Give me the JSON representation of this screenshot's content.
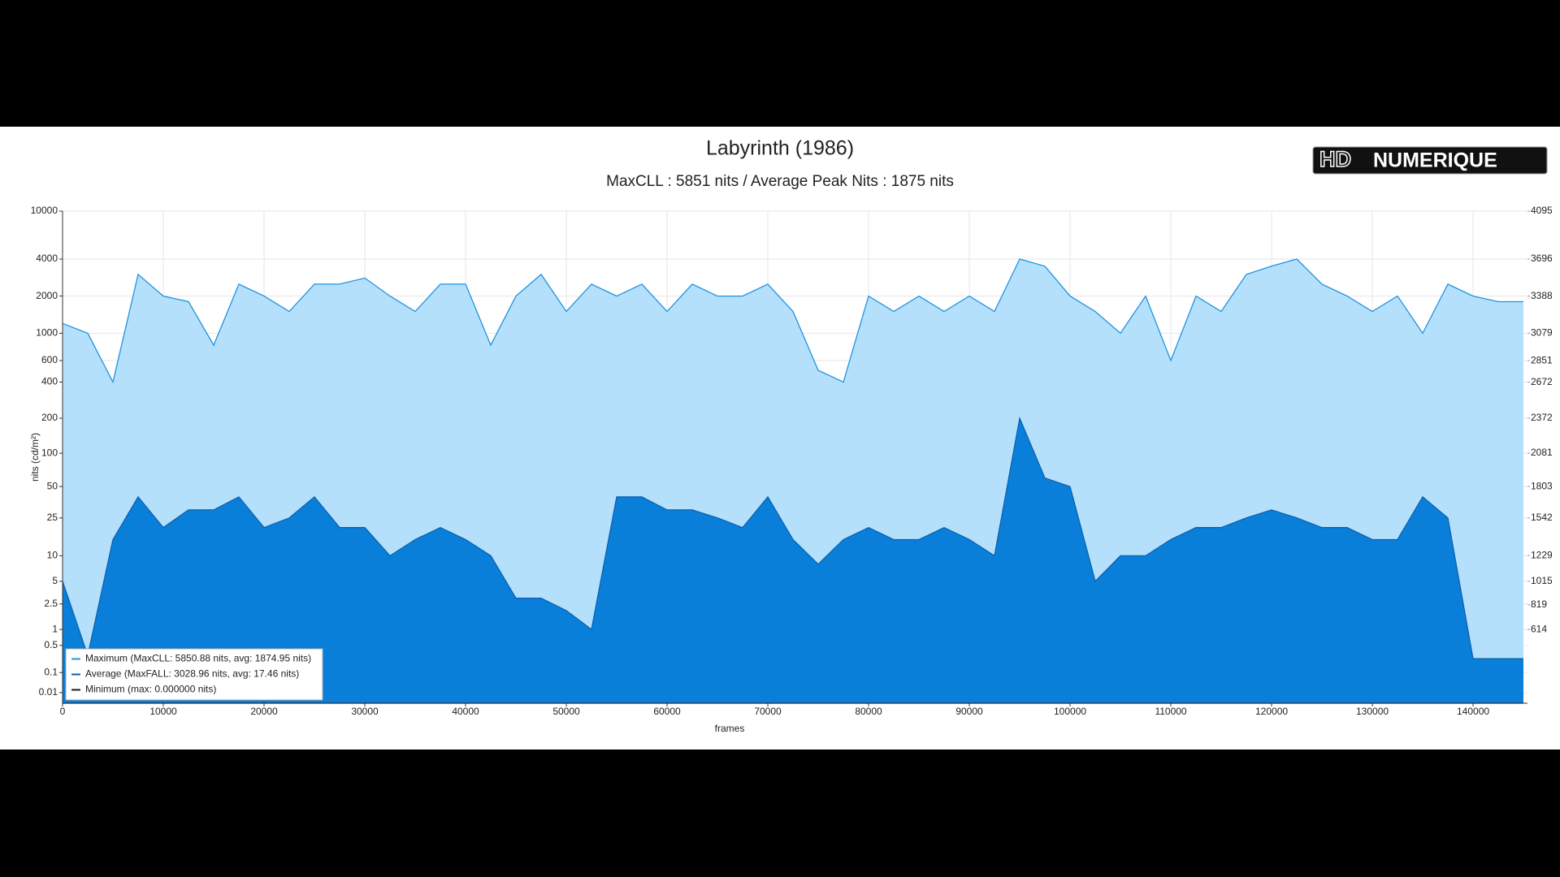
{
  "chart_data": {
    "type": "area",
    "title": "Labyrinth (1986)",
    "subtitle": "MaxCLL : 5851 nits / Average Peak Nits : 1875 nits",
    "logo": [
      "HD",
      "NUMERIQUE"
    ],
    "x_label": "frames",
    "y_label": "nits (cd/m²)",
    "y_scale": "pq",
    "grid": true,
    "legend": "lower left",
    "xlim": [
      0,
      145400
    ],
    "xticks": [
      0,
      10000,
      20000,
      30000,
      40000,
      50000,
      60000,
      70000,
      80000,
      90000,
      100000,
      110000,
      120000,
      130000,
      140000
    ],
    "ylim": [
      0,
      10000
    ],
    "yticks": [
      0.01,
      0.1,
      0.5,
      1,
      2.5,
      5,
      10,
      25,
      50,
      100,
      200,
      400,
      600,
      1000,
      2000,
      4000,
      10000
    ],
    "y2lim": [
      0,
      4095
    ],
    "y2ticks": [
      614,
      819,
      1015,
      1229,
      1542,
      1803,
      2081,
      2372,
      2672,
      2851,
      3079,
      3388,
      3696,
      4095
    ],
    "x": [
      0,
      2500,
      5000,
      7500,
      10000,
      12500,
      15000,
      17500,
      20000,
      22500,
      25000,
      27500,
      30000,
      32500,
      35000,
      37500,
      40000,
      42500,
      45000,
      47500,
      50000,
      52500,
      55000,
      57500,
      60000,
      62500,
      65000,
      67500,
      70000,
      72500,
      75000,
      77500,
      80000,
      82500,
      85000,
      87500,
      90000,
      92500,
      95000,
      97500,
      100000,
      102500,
      105000,
      107500,
      110000,
      112500,
      115000,
      117500,
      120000,
      122500,
      125000,
      127500,
      130000,
      132500,
      135000,
      137500,
      140000,
      142500,
      145000
    ],
    "series": [
      {
        "name": "Maximum (MaxCLL: 5850.88 nits, avg: 1874.95 nits)",
        "color": "#1f93e0",
        "fill": "#b5e0fb",
        "values": [
          1200,
          1000,
          400,
          3000,
          2000,
          1800,
          800,
          2500,
          2000,
          1500,
          2500,
          2500,
          2800,
          2000,
          1500,
          2500,
          2500,
          800,
          2000,
          3000,
          1500,
          2500,
          2000,
          2500,
          1500,
          2500,
          2000,
          2000,
          2500,
          1500,
          500,
          400,
          2000,
          1500,
          2000,
          1500,
          2000,
          1500,
          4000,
          3500,
          2000,
          1500,
          1000,
          2000,
          600,
          2000,
          1500,
          3000,
          3500,
          4000,
          2500,
          2000,
          1500,
          2000,
          1000,
          2500,
          2000,
          1800,
          1800
        ]
      },
      {
        "name": "Average (MaxFALL: 3028.96 nits, avg: 17.46 nits)",
        "color": "#0b62b0",
        "fill": "#0a7fd9",
        "values": [
          5,
          0.3,
          15,
          40,
          20,
          30,
          30,
          40,
          20,
          25,
          40,
          20,
          20,
          10,
          15,
          20,
          15,
          10,
          3,
          3,
          2,
          1,
          40,
          40,
          30,
          30,
          25,
          20,
          40,
          15,
          8,
          15,
          20,
          15,
          15,
          20,
          15,
          10,
          200,
          60,
          50,
          5,
          10,
          10,
          15,
          20,
          20,
          25,
          30,
          25,
          20,
          20,
          15,
          15,
          40,
          25,
          0.25,
          0.25,
          0.25
        ]
      },
      {
        "name": "Minimum (max: 0.000000 nits)",
        "color": "#1a1a1a",
        "fill": null,
        "values": [
          0,
          0,
          0,
          0,
          0,
          0,
          0,
          0,
          0,
          0,
          0,
          0,
          0,
          0,
          0,
          0,
          0,
          0,
          0,
          0,
          0,
          0,
          0,
          0,
          0,
          0,
          0,
          0,
          0,
          0,
          0,
          0,
          0,
          0,
          0,
          0,
          0,
          0,
          0,
          0,
          0,
          0,
          0,
          0,
          0,
          0,
          0,
          0,
          0,
          0,
          0,
          0,
          0,
          0,
          0,
          0,
          0,
          0,
          0
        ]
      }
    ]
  }
}
